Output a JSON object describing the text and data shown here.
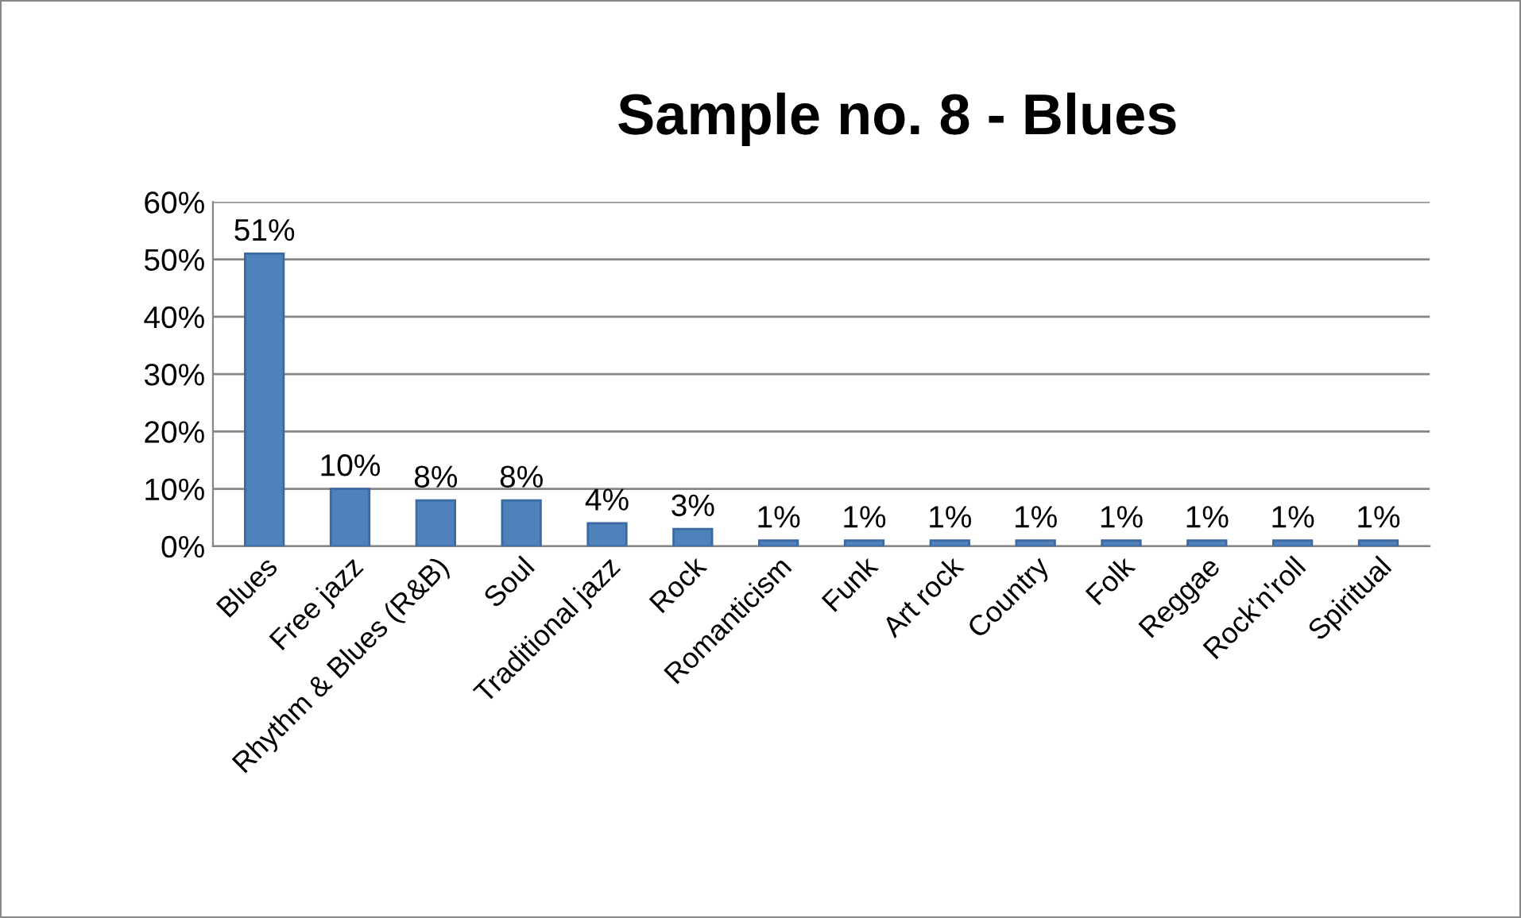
{
  "chart_data": {
    "type": "bar",
    "title": "Sample no. 8 - Blues",
    "categories": [
      "Blues",
      "Free jazz",
      "Rhythm & Blues (R&B)",
      "Soul",
      "Traditional jazz",
      "Rock",
      "Romanticism",
      "Funk",
      "Art rock",
      "Country",
      "Folk",
      "Reggae",
      "Rock'n'roll",
      "Spiritual"
    ],
    "values": [
      51,
      10,
      8,
      8,
      4,
      3,
      1,
      1,
      1,
      1,
      1,
      1,
      1,
      1
    ],
    "value_labels": [
      "51%",
      "10%",
      "8%",
      "8%",
      "4%",
      "3%",
      "1%",
      "1%",
      "1%",
      "1%",
      "1%",
      "1%",
      "1%",
      "1%"
    ],
    "color": "#4f81bd",
    "ylim": [
      0,
      60
    ],
    "yticks": [
      {
        "value": 0,
        "label": "0%"
      },
      {
        "value": 10,
        "label": "10%"
      },
      {
        "value": 20,
        "label": "20%"
      },
      {
        "value": 30,
        "label": "30%"
      },
      {
        "value": 40,
        "label": "40%"
      },
      {
        "value": 50,
        "label": "50%"
      },
      {
        "value": 60,
        "label": "60%"
      }
    ],
    "grid": "y"
  }
}
